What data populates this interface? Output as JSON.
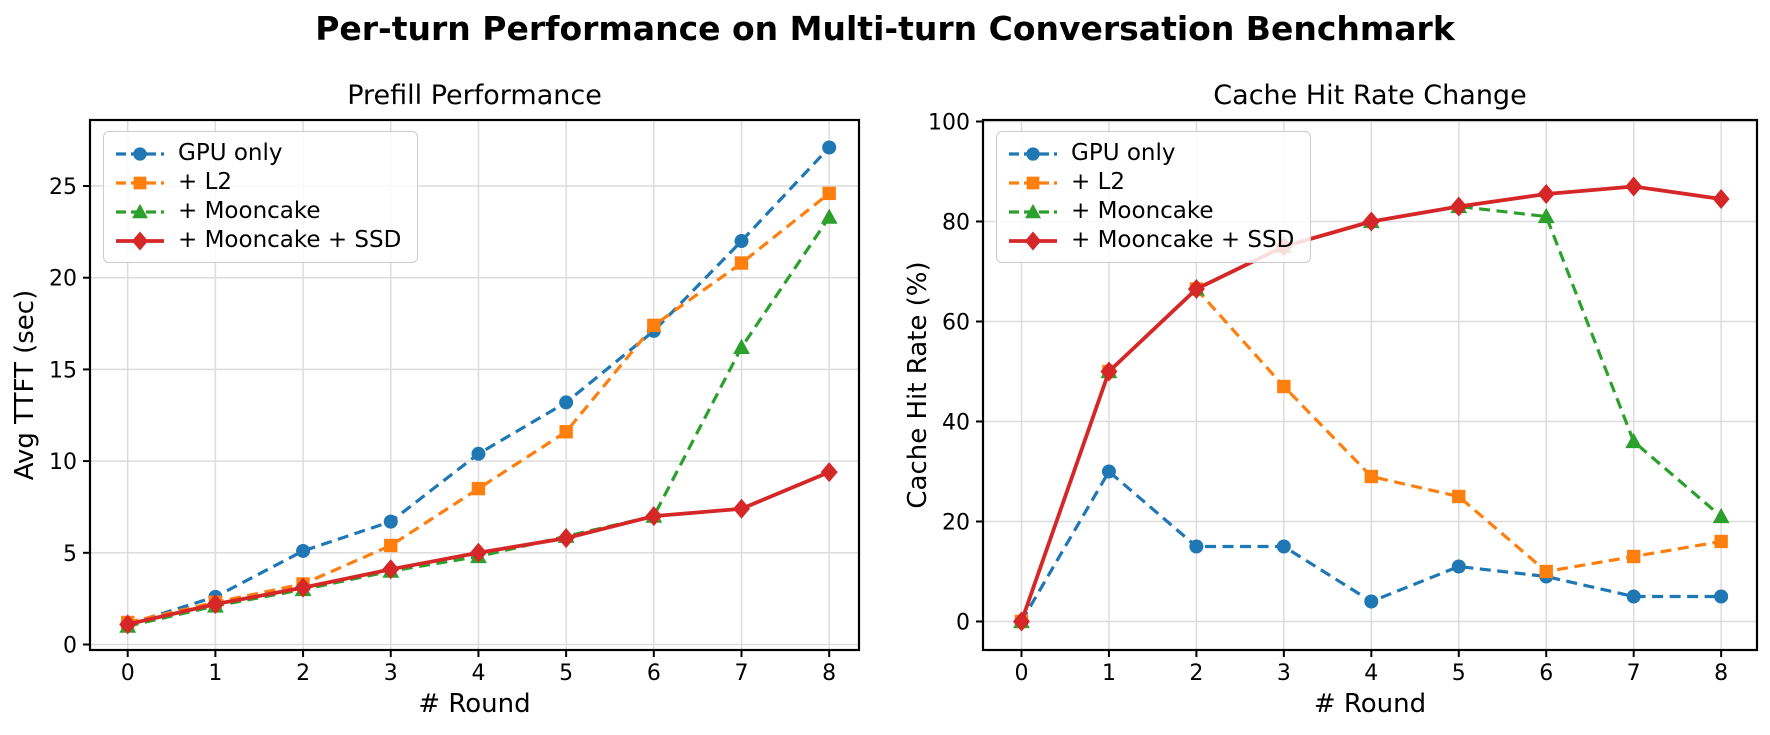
{
  "figure": {
    "title": "Per-turn Performance on Multi-turn Conversation Benchmark"
  },
  "chart_data": [
    {
      "id": "prefill",
      "type": "line",
      "title": "Prefill Performance",
      "xlabel": "# Round",
      "ylabel": "Avg TTFT (sec)",
      "x": [
        0,
        1,
        2,
        3,
        4,
        5,
        6,
        7,
        8
      ],
      "xticks": [
        0,
        1,
        2,
        3,
        4,
        5,
        6,
        7,
        8
      ],
      "yticks": [
        0,
        5,
        10,
        15,
        20,
        25
      ],
      "xlim": [
        -0.43,
        8.34
      ],
      "ylim": [
        -0.3,
        28.6
      ],
      "grid": true,
      "legend_position": "upper left",
      "series": [
        {
          "name": "GPU only",
          "color": "#1f77b4",
          "marker": "circle",
          "linestyle": "dashed",
          "values": [
            1.1,
            2.6,
            5.1,
            6.7,
            10.4,
            13.2,
            17.1,
            22.0,
            27.1
          ]
        },
        {
          "name": "+ L2",
          "color": "#ff7f0e",
          "marker": "square",
          "linestyle": "dashed",
          "values": [
            1.2,
            2.3,
            3.3,
            5.4,
            8.5,
            11.6,
            17.4,
            20.8,
            24.6
          ]
        },
        {
          "name": "+ Mooncake",
          "color": "#2ca02c",
          "marker": "triangle",
          "linestyle": "dashed",
          "values": [
            1.0,
            2.1,
            3.0,
            4.0,
            4.8,
            5.9,
            7.0,
            16.2,
            23.3
          ]
        },
        {
          "name": "+ Mooncake + SSD",
          "color": "#d62728",
          "marker": "diamond",
          "linestyle": "solid",
          "values": [
            1.1,
            2.2,
            3.1,
            4.1,
            5.0,
            5.8,
            7.0,
            7.4,
            9.4
          ]
        }
      ]
    },
    {
      "id": "cache-hit",
      "type": "line",
      "title": "Cache Hit Rate Change",
      "xlabel": "# Round",
      "ylabel": "Cache Hit Rate (%)",
      "x": [
        0,
        1,
        2,
        3,
        4,
        5,
        6,
        7,
        8
      ],
      "xticks": [
        0,
        1,
        2,
        3,
        4,
        5,
        6,
        7,
        8
      ],
      "yticks": [
        0,
        20,
        40,
        60,
        80,
        100
      ],
      "xlim": [
        -0.44,
        8.41
      ],
      "ylim": [
        -5.7,
        100.3
      ],
      "grid": true,
      "legend_position": "upper left",
      "series": [
        {
          "name": "GPU only",
          "color": "#1f77b4",
          "marker": "circle",
          "linestyle": "dashed",
          "values": [
            0,
            30,
            15,
            15,
            4,
            11,
            9,
            5,
            5
          ]
        },
        {
          "name": "+ L2",
          "color": "#ff7f0e",
          "marker": "square",
          "linestyle": "dashed",
          "values": [
            0,
            50,
            66.5,
            47,
            29,
            25,
            10,
            13,
            16
          ]
        },
        {
          "name": "+ Mooncake",
          "color": "#2ca02c",
          "marker": "triangle",
          "linestyle": "dashed",
          "values": [
            0,
            50,
            66.5,
            75,
            80,
            83,
            81,
            36,
            21
          ]
        },
        {
          "name": "+ Mooncake + SSD",
          "color": "#d62728",
          "marker": "diamond",
          "linestyle": "solid",
          "values": [
            0,
            50,
            66.5,
            75,
            80,
            83,
            85.5,
            87,
            84.5
          ]
        }
      ]
    }
  ],
  "style": {
    "grid_color": "#dcdcdc",
    "axis_color": "#000000",
    "legend_border_color": "#cccccc"
  }
}
